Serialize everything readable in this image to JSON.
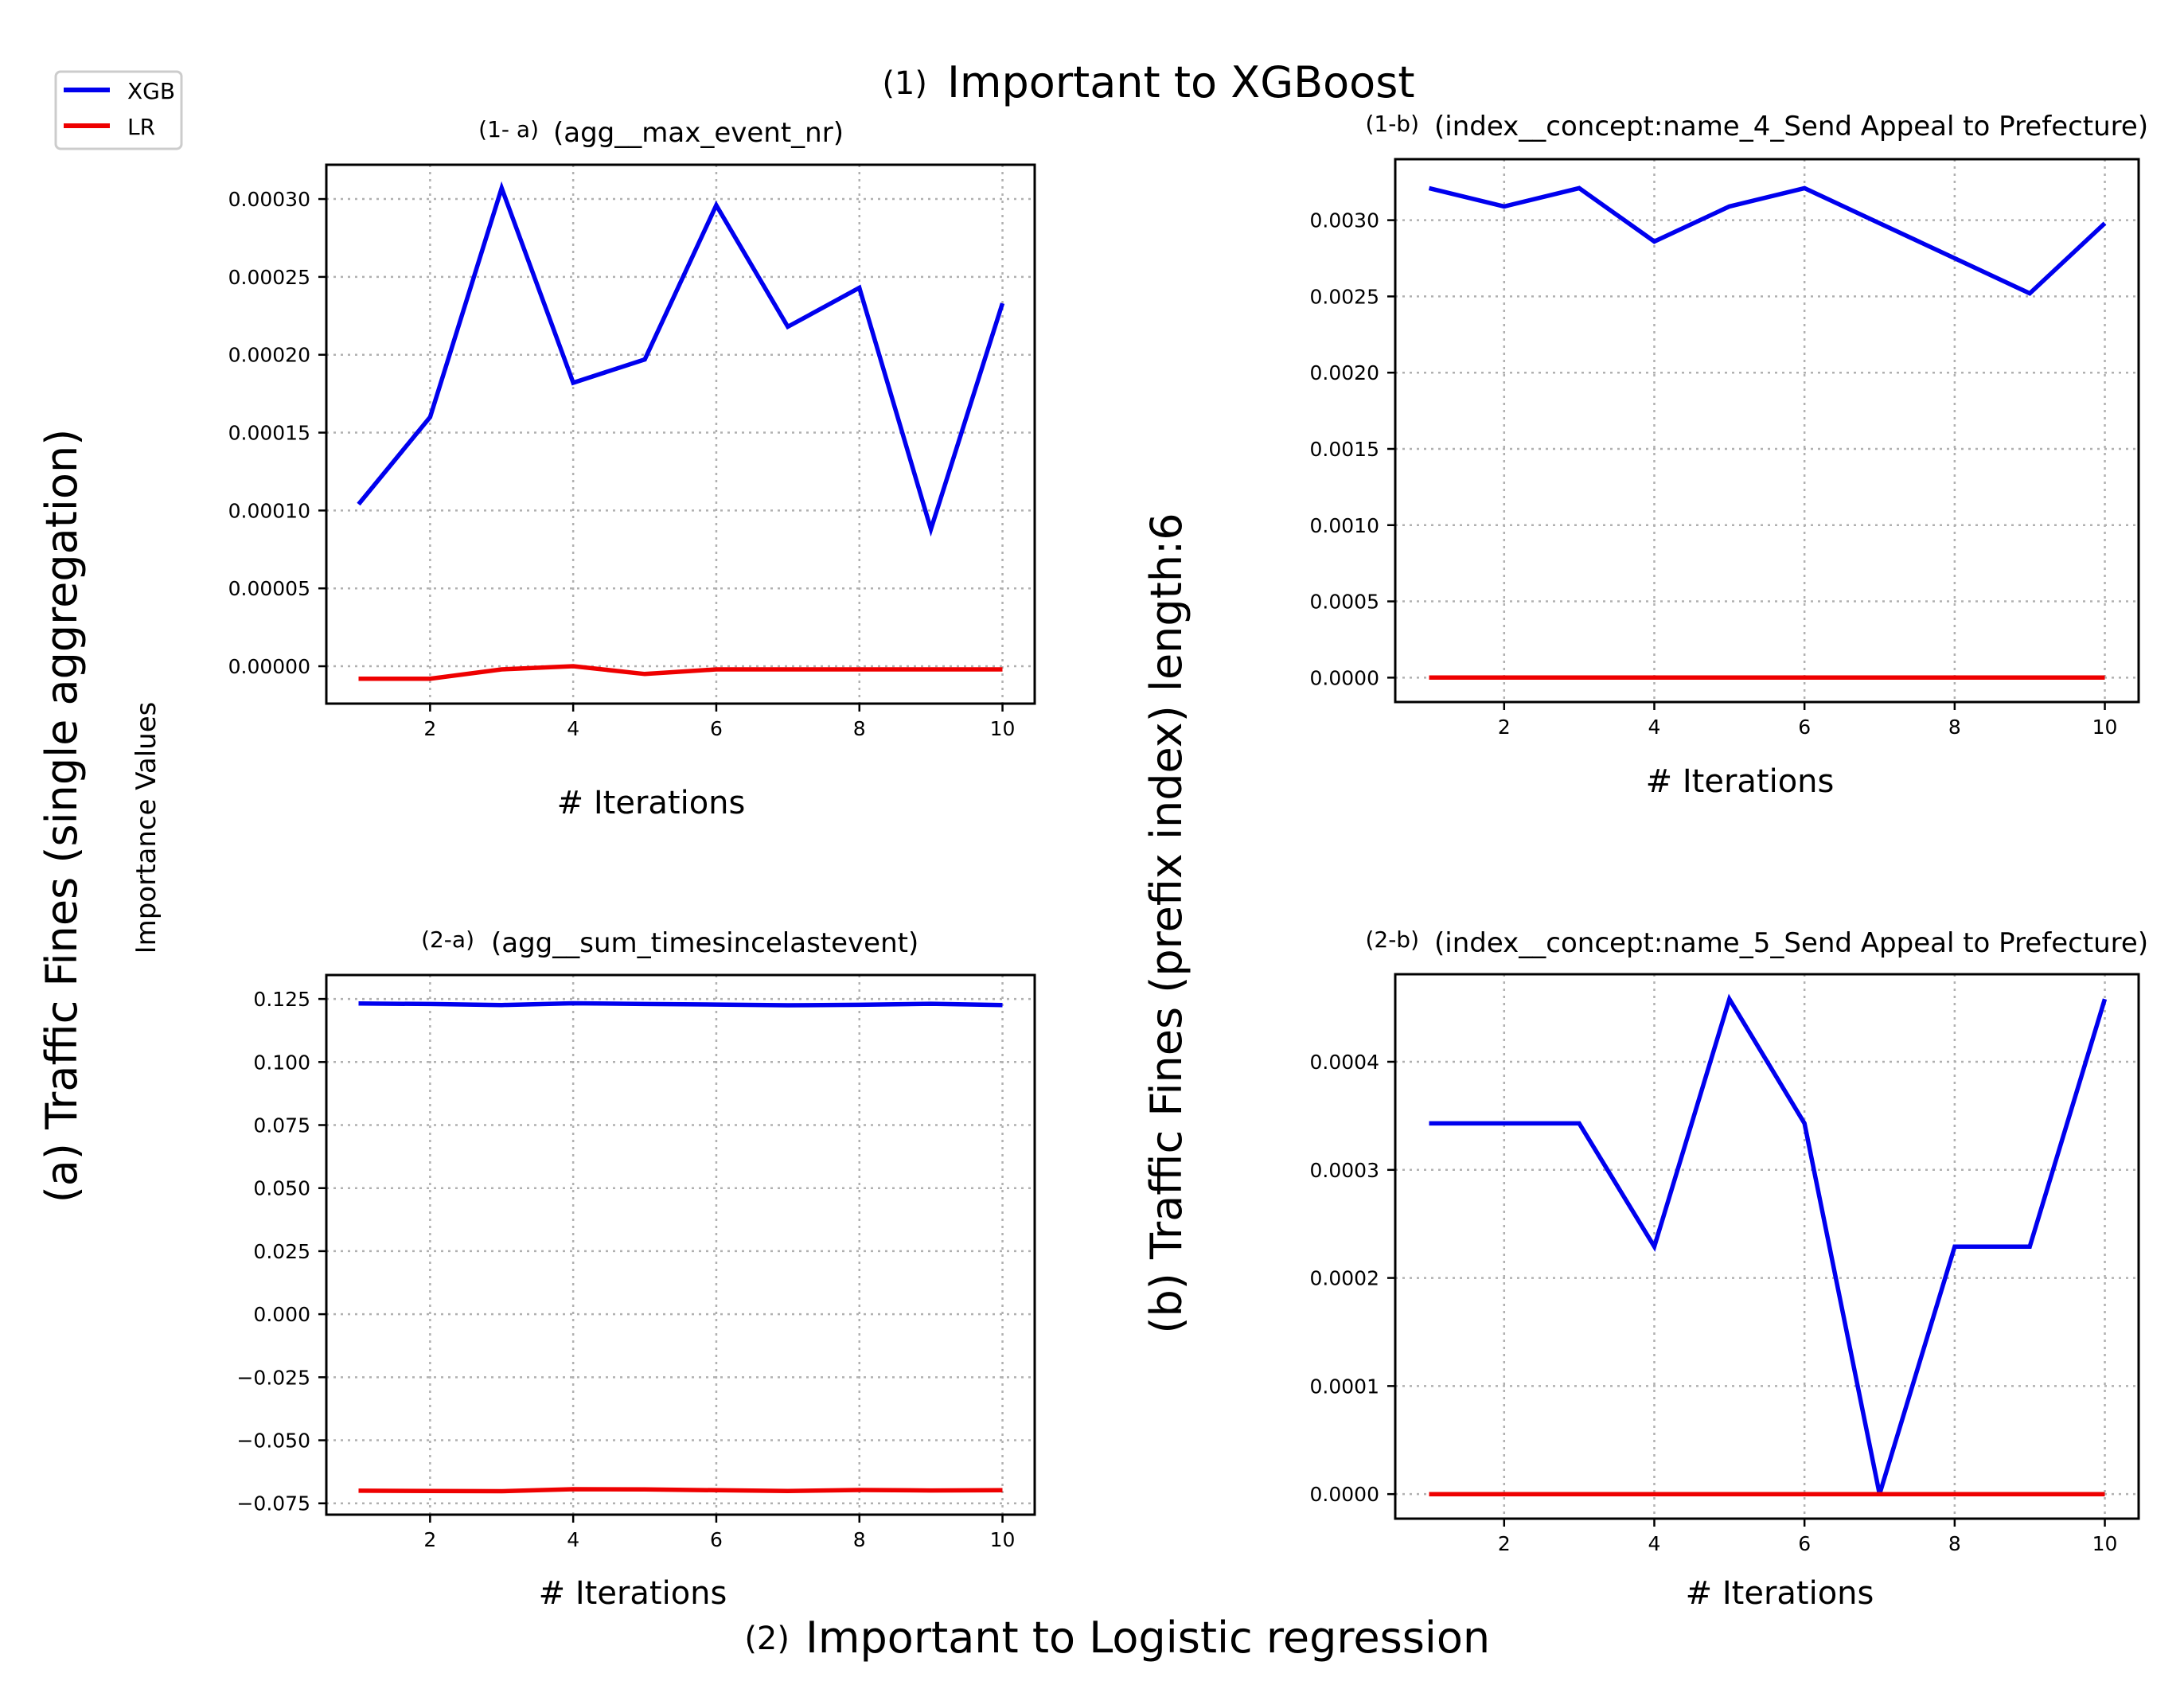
{
  "figure": {
    "top_title_num": "(1)",
    "top_title": "Important to XGBoost",
    "bottom_title_num": "(2)",
    "bottom_title": "Important to Logistic regression",
    "left_row_label": "(a)  Traffic Fines (single aggregation)",
    "left_axis_label": "Importance Values",
    "middle_row_label": "(b)   Traffic Fines (prefix index) length:6"
  },
  "legend": {
    "items": [
      {
        "label": "XGB",
        "color": "#0000ee"
      },
      {
        "label": "LR",
        "color": "#ee0000"
      }
    ]
  },
  "colors": {
    "xgb": "#0000ee",
    "lr": "#ee0000",
    "grid": "#b0b0b0"
  },
  "chart_data": [
    {
      "id": "1a",
      "type": "line",
      "panel_label": "(1- a)",
      "title": "(agg__max_event_nr)",
      "xlabel": "# Iterations",
      "ylabel": "",
      "x": [
        1,
        2,
        3,
        4,
        5,
        6,
        7,
        8,
        9,
        10
      ],
      "xlim": [
        0.55,
        10.45
      ],
      "xticks": [
        2,
        4,
        6,
        8,
        10
      ],
      "xtick_labels": [
        "2",
        "4",
        "6",
        "8",
        "10"
      ],
      "ylim": [
        -2.4e-05,
        0.000322
      ],
      "yticks": [
        0,
        5e-05,
        0.0001,
        0.00015,
        0.0002,
        0.00025,
        0.0003
      ],
      "ytick_labels": [
        "0.00000",
        "0.00005",
        "0.00010",
        "0.00015",
        "0.00020",
        "0.00025",
        "0.00030"
      ],
      "grid": true,
      "series": [
        {
          "name": "XGB",
          "values": [
            0.000104,
            0.00016,
            0.000307,
            0.000182,
            0.000197,
            0.000296,
            0.000218,
            0.000243,
            8.8e-05,
            0.000233
          ]
        },
        {
          "name": "LR",
          "values": [
            -8e-06,
            -8e-06,
            -2e-06,
            0.0,
            -5e-06,
            -2e-06,
            -2e-06,
            -2e-06,
            -2e-06,
            -2e-06
          ]
        }
      ]
    },
    {
      "id": "1b",
      "type": "line",
      "panel_label": "(1-b)",
      "title": "(index__concept:name_4_Send Appeal to Prefecture)",
      "xlabel": "# Iterations",
      "ylabel": "",
      "x": [
        1,
        2,
        3,
        4,
        5,
        6,
        7,
        8,
        9,
        10
      ],
      "xlim": [
        0.55,
        10.45
      ],
      "xticks": [
        2,
        4,
        6,
        8,
        10
      ],
      "xtick_labels": [
        "2",
        "4",
        "6",
        "8",
        "10"
      ],
      "ylim": [
        -0.00016,
        0.0034
      ],
      "yticks": [
        0,
        0.0005,
        0.001,
        0.0015,
        0.002,
        0.0025,
        0.003
      ],
      "ytick_labels": [
        "0.0000",
        "0.0005",
        "0.0010",
        "0.0015",
        "0.0020",
        "0.0025",
        "0.0030"
      ],
      "grid": true,
      "series": [
        {
          "name": "XGB",
          "values": [
            0.00321,
            0.00309,
            0.00321,
            0.00286,
            0.00309,
            0.00321,
            0.00298,
            0.00275,
            0.00252,
            0.00298
          ]
        },
        {
          "name": "LR",
          "values": [
            0,
            0,
            0,
            0,
            0,
            0,
            0,
            0,
            0,
            0
          ]
        }
      ]
    },
    {
      "id": "2a",
      "type": "line",
      "panel_label": "(2-a)",
      "title": "(agg__sum_timesincelastevent)",
      "xlabel": "# Iterations",
      "ylabel": "",
      "x": [
        1,
        2,
        3,
        4,
        5,
        6,
        7,
        8,
        9,
        10
      ],
      "xlim": [
        0.55,
        10.45
      ],
      "xticks": [
        2,
        4,
        6,
        8,
        10
      ],
      "xtick_labels": [
        "2",
        "4",
        "6",
        "8",
        "10"
      ],
      "ylim": [
        -0.0795,
        0.1345
      ],
      "yticks": [
        -0.075,
        -0.05,
        -0.025,
        0,
        0.025,
        0.05,
        0.075,
        0.1,
        0.125
      ],
      "ytick_labels": [
        "−0.075",
        "−0.050",
        "−0.025",
        "0.000",
        "0.025",
        "0.050",
        "0.075",
        "0.100",
        "0.125"
      ],
      "grid": true,
      "series": [
        {
          "name": "XGB",
          "values": [
            0.1232,
            0.123,
            0.1226,
            0.1233,
            0.123,
            0.1228,
            0.1225,
            0.1227,
            0.1231,
            0.1226
          ]
        },
        {
          "name": "LR",
          "values": [
            -0.07,
            -0.0701,
            -0.0702,
            -0.0694,
            -0.0695,
            -0.0698,
            -0.0701,
            -0.0697,
            -0.0699,
            -0.0698
          ]
        }
      ]
    },
    {
      "id": "2b",
      "type": "line",
      "panel_label": "(2-b)",
      "title": "(index__concept:name_5_Send Appeal to Prefecture)",
      "xlabel": "# Iterations",
      "ylabel": "",
      "x": [
        1,
        2,
        3,
        4,
        5,
        6,
        7,
        8,
        9,
        10
      ],
      "xlim": [
        0.55,
        10.45
      ],
      "xticks": [
        2,
        4,
        6,
        8,
        10
      ],
      "xtick_labels": [
        "2",
        "4",
        "6",
        "8",
        "10"
      ],
      "ylim": [
        -2.27e-05,
        0.000481
      ],
      "yticks": [
        0,
        0.0001,
        0.0002,
        0.0003,
        0.0004
      ],
      "ytick_labels": [
        "0.0000",
        "0.0001",
        "0.0002",
        "0.0003",
        "0.0004"
      ],
      "grid": true,
      "series": [
        {
          "name": "XGB",
          "values": [
            0.000343,
            0.000343,
            0.000343,
            0.000229,
            0.000458,
            0.000343,
            0.0,
            0.000229,
            0.000229,
            0.000458
          ]
        },
        {
          "name": "LR",
          "values": [
            0,
            0,
            0,
            0,
            0,
            0,
            0,
            0,
            0,
            0
          ]
        }
      ]
    }
  ]
}
